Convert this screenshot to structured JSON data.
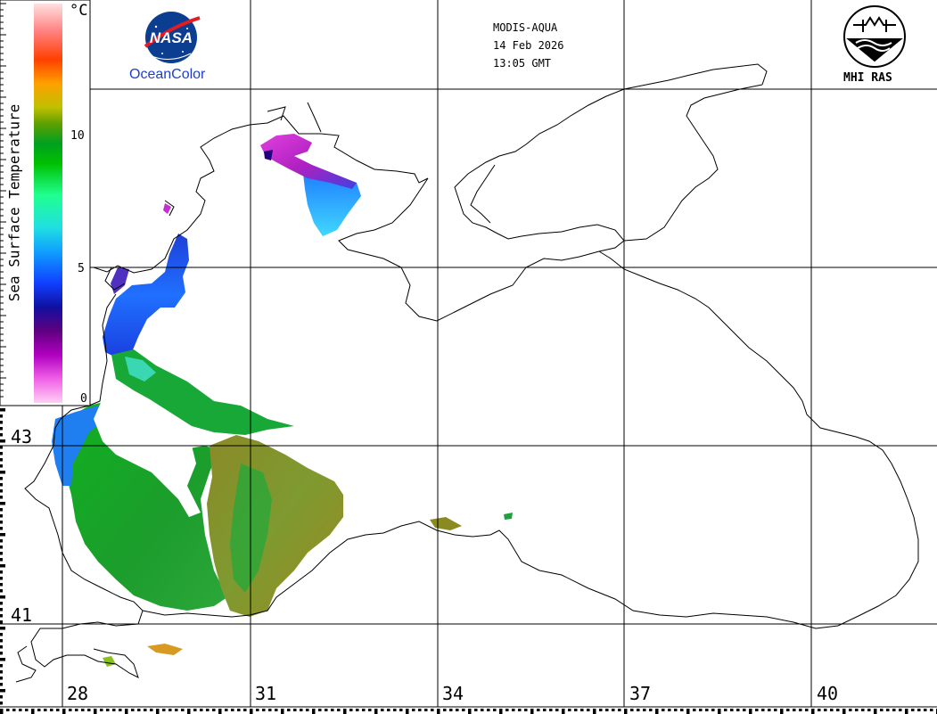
{
  "header": {
    "satellite": "MODIS-AQUA",
    "date": "14 Feb 2026",
    "time": "13:05 GMT"
  },
  "logos": {
    "nasa_word": "NASA",
    "oceancolor_text": "OceanColor",
    "mhi_text": "MHI RAS"
  },
  "colorbar": {
    "title": "Sea Surface Temperature",
    "unit": "°C",
    "ticks": [
      "10",
      "5",
      "0"
    ],
    "colors": [
      "#ffd0f4",
      "#f060e8",
      "#b000c0",
      "#600080",
      "#1010a0",
      "#1040ff",
      "#10a0ff",
      "#20e0e0",
      "#20ff90",
      "#00c000",
      "#00a020",
      "#60a000",
      "#c0c000",
      "#ffa000",
      "#ff4000",
      "#ff8080",
      "#ffe0e0"
    ]
  },
  "grid": {
    "longitude_labels": [
      "28",
      "31",
      "34",
      "37",
      "40"
    ],
    "latitude_labels": [
      "43",
      "41"
    ]
  },
  "map": {
    "land_color": "#ffffff",
    "coast_color": "#000000",
    "grid_color": "#000000"
  }
}
